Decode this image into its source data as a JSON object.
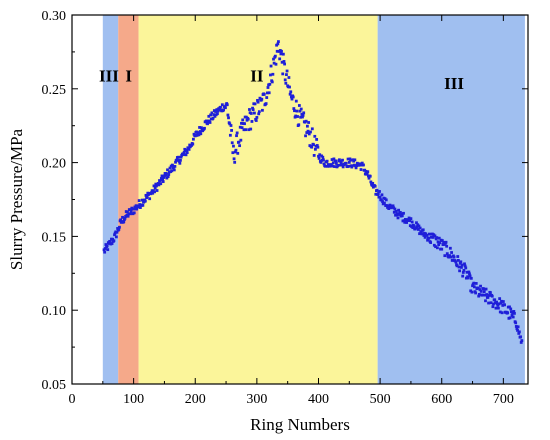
{
  "chart_data": {
    "type": "scatter",
    "title": "",
    "xlabel": "Ring Numbers",
    "ylabel": "Slurry Pressure/MPa",
    "xlim": [
      0,
      740
    ],
    "ylim": [
      0.05,
      0.3
    ],
    "grid": false,
    "x_ticks": [
      0,
      100,
      200,
      300,
      400,
      500,
      600,
      700
    ],
    "y_ticks": [
      0.05,
      0.1,
      0.15,
      0.2,
      0.25,
      0.3
    ],
    "regions": [
      {
        "label": "III",
        "x_start": 50,
        "x_end": 75,
        "color": "#a0bff0"
      },
      {
        "label": "I",
        "x_start": 75,
        "x_end": 108,
        "color": "#f5a98a"
      },
      {
        "label": "II",
        "x_start": 108,
        "x_end": 496,
        "color": "#fbf59a"
      },
      {
        "label": "III",
        "x_start": 496,
        "x_end": 735,
        "color": "#a0bff0"
      }
    ],
    "region_labels": [
      {
        "text": "III",
        "x": 60,
        "y": 0.255
      },
      {
        "text": "I",
        "x": 92,
        "y": 0.255
      },
      {
        "text": "II",
        "x": 300,
        "y": 0.255
      },
      {
        "text": "III",
        "x": 620,
        "y": 0.25
      }
    ],
    "marker_color": "#1f1fd8",
    "series": [
      {
        "anchors": [
          [
            52,
            0.14
          ],
          [
            60,
            0.144
          ],
          [
            70,
            0.15
          ],
          [
            80,
            0.16
          ],
          [
            90,
            0.165
          ],
          [
            100,
            0.168
          ],
          [
            110,
            0.172
          ],
          [
            130,
            0.18
          ],
          [
            150,
            0.19
          ],
          [
            170,
            0.2
          ],
          [
            190,
            0.21
          ],
          [
            200,
            0.218
          ],
          [
            220,
            0.228
          ],
          [
            245,
            0.238
          ],
          [
            252,
            0.238
          ],
          [
            262,
            0.205
          ],
          [
            270,
            0.215
          ],
          [
            285,
            0.228
          ],
          [
            300,
            0.235
          ],
          [
            312,
            0.242
          ],
          [
            325,
            0.262
          ],
          [
            335,
            0.28
          ],
          [
            345,
            0.262
          ],
          [
            355,
            0.245
          ],
          [
            370,
            0.23
          ],
          [
            385,
            0.22
          ],
          [
            400,
            0.205
          ],
          [
            410,
            0.2
          ],
          [
            430,
            0.2
          ],
          [
            450,
            0.2
          ],
          [
            470,
            0.198
          ],
          [
            480,
            0.192
          ],
          [
            490,
            0.182
          ],
          [
            500,
            0.178
          ],
          [
            510,
            0.172
          ],
          [
            530,
            0.165
          ],
          [
            550,
            0.16
          ],
          [
            570,
            0.152
          ],
          [
            590,
            0.147
          ],
          [
            610,
            0.14
          ],
          [
            630,
            0.13
          ],
          [
            640,
            0.125
          ],
          [
            650,
            0.115
          ],
          [
            670,
            0.11
          ],
          [
            690,
            0.105
          ],
          [
            710,
            0.098
          ],
          [
            720,
            0.093
          ],
          [
            730,
            0.078
          ]
        ]
      }
    ]
  }
}
